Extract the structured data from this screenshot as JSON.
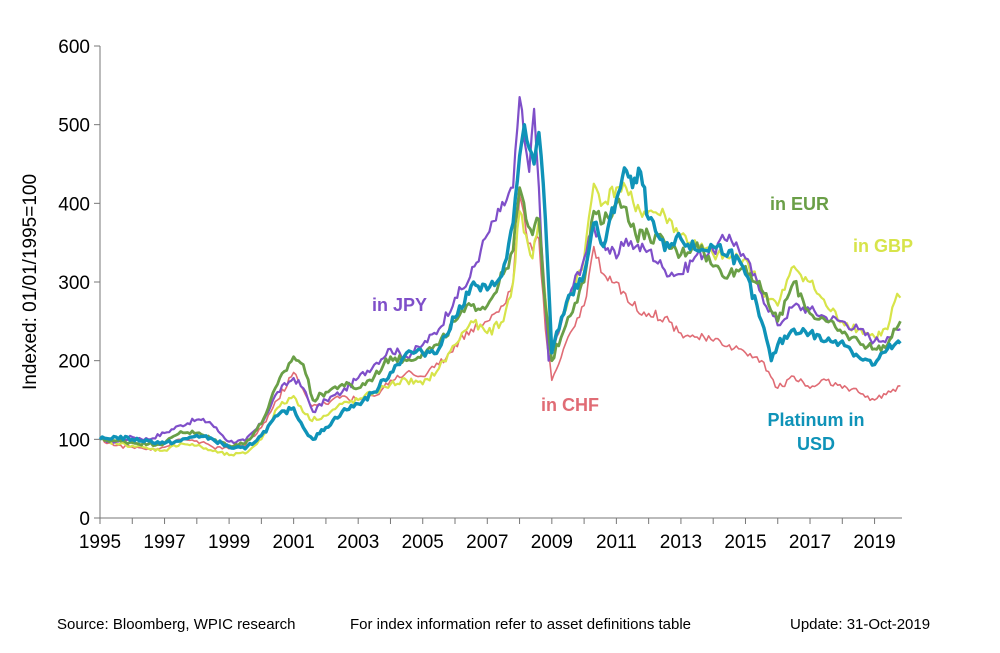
{
  "chart_data": {
    "type": "line",
    "ylabel": "Indexed: 01/01/1995=100",
    "xlim": [
      1995,
      2019.85
    ],
    "ylim": [
      0,
      600
    ],
    "x_ticks": [
      "1995",
      "1997",
      "1999",
      "2001",
      "2003",
      "2005",
      "2007",
      "2009",
      "2011",
      "2013",
      "2015",
      "2017",
      "2019"
    ],
    "y_ticks": [
      "0",
      "100",
      "200",
      "300",
      "400",
      "500",
      "600"
    ],
    "grid": false,
    "legend": "inline labels",
    "series": [
      {
        "name": "in JPY",
        "color": "#7f4fc9",
        "label_lines": [
          "in JPY"
        ],
        "x": [
          1995,
          1995.5,
          1996,
          1996.5,
          1997,
          1997.5,
          1998,
          1998.4,
          1998.8,
          1999,
          1999.5,
          2000,
          2000.5,
          2001,
          2001.3,
          2001.6,
          2002,
          2002.5,
          2003,
          2003.5,
          2004,
          2004.5,
          2005,
          2005.5,
          2006,
          2006.4,
          2006.8,
          2007,
          2007.4,
          2007.8,
          2008,
          2008.15,
          2008.3,
          2008.45,
          2008.6,
          2008.75,
          2008.9,
          2009,
          2009.3,
          2009.6,
          2010,
          2010.3,
          2010.6,
          2011,
          2011.3,
          2011.6,
          2012,
          2012.5,
          2013,
          2013.5,
          2014,
          2014.5,
          2015,
          2015.5,
          2016,
          2016.5,
          2017,
          2017.5,
          2018,
          2018.5,
          2019,
          2019.4,
          2019.8
        ],
        "values": [
          100,
          97,
          103,
          100,
          108,
          118,
          125,
          122,
          105,
          97,
          98,
          120,
          160,
          178,
          165,
          135,
          150,
          160,
          178,
          195,
          215,
          205,
          220,
          240,
          280,
          300,
          340,
          360,
          390,
          420,
          535,
          480,
          440,
          520,
          420,
          300,
          200,
          210,
          250,
          290,
          330,
          370,
          350,
          330,
          355,
          345,
          340,
          315,
          310,
          335,
          340,
          360,
          330,
          285,
          245,
          270,
          265,
          255,
          250,
          240,
          225,
          230,
          240
        ]
      },
      {
        "name": "in EUR",
        "color": "#6a9f47",
        "label_lines": [
          "in EUR"
        ],
        "x": [
          1995,
          1995.5,
          1996,
          1996.5,
          1997,
          1997.5,
          1998,
          1998.5,
          1999,
          1999.5,
          2000,
          2000.5,
          2001,
          2001.3,
          2001.6,
          2002,
          2002.5,
          2003,
          2003.5,
          2004,
          2004.5,
          2005,
          2005.5,
          2006,
          2006.5,
          2007,
          2007.5,
          2007.8,
          2008,
          2008.2,
          2008.4,
          2008.6,
          2008.8,
          2009,
          2009.5,
          2010,
          2010.3,
          2010.6,
          2011,
          2011.3,
          2011.6,
          2012,
          2012.5,
          2013,
          2013.5,
          2014,
          2014.5,
          2015,
          2015.5,
          2016,
          2016.5,
          2017,
          2017.5,
          2018,
          2018.5,
          2019,
          2019.4,
          2019.8
        ],
        "values": [
          100,
          98,
          96,
          94,
          95,
          110,
          108,
          100,
          92,
          95,
          120,
          170,
          205,
          195,
          150,
          160,
          170,
          165,
          180,
          205,
          200,
          210,
          220,
          250,
          270,
          270,
          310,
          340,
          420,
          380,
          360,
          380,
          270,
          200,
          255,
          300,
          390,
          375,
          400,
          395,
          360,
          360,
          350,
          335,
          350,
          320,
          310,
          320,
          290,
          250,
          300,
          260,
          250,
          235,
          225,
          215,
          220,
          250
        ]
      },
      {
        "name": "in GBP",
        "color": "#d7e44a",
        "label_lines": [
          "in GBP"
        ],
        "x": [
          1995,
          1995.5,
          1996,
          1996.5,
          1997,
          1997.5,
          1998,
          1998.5,
          1999,
          1999.5,
          2000,
          2000.5,
          2001,
          2001.5,
          2002,
          2002.5,
          2003,
          2003.5,
          2004,
          2004.5,
          2005,
          2005.5,
          2006,
          2006.5,
          2007,
          2007.5,
          2007.8,
          2008,
          2008.2,
          2008.4,
          2008.6,
          2008.8,
          2009,
          2009.5,
          2010,
          2010.3,
          2010.6,
          2011,
          2011.3,
          2011.6,
          2012,
          2012.5,
          2013,
          2013.5,
          2014,
          2014.5,
          2015,
          2015.5,
          2016,
          2016.5,
          2017,
          2017.5,
          2018,
          2018.5,
          2019,
          2019.4,
          2019.7,
          2019.8
        ],
        "values": [
          100,
          95,
          92,
          88,
          86,
          95,
          92,
          85,
          80,
          82,
          100,
          140,
          155,
          125,
          130,
          145,
          150,
          160,
          170,
          175,
          170,
          190,
          220,
          250,
          235,
          250,
          300,
          390,
          360,
          330,
          380,
          280,
          210,
          275,
          330,
          425,
          400,
          420,
          420,
          390,
          390,
          385,
          360,
          345,
          335,
          330,
          330,
          290,
          270,
          320,
          300,
          270,
          250,
          240,
          230,
          240,
          285,
          280
        ]
      },
      {
        "name": "in CHF",
        "color": "#e06c75",
        "label_lines": [
          "in CHF"
        ],
        "x": [
          1995,
          1995.5,
          1996,
          1996.5,
          1997,
          1997.5,
          1998,
          1998.5,
          1999,
          1999.5,
          2000,
          2000.5,
          2001,
          2001.5,
          2002,
          2002.5,
          2003,
          2003.5,
          2004,
          2004.5,
          2005,
          2005.5,
          2006,
          2006.5,
          2007,
          2007.5,
          2007.8,
          2008,
          2008.2,
          2008.4,
          2008.6,
          2008.8,
          2009,
          2009.5,
          2010,
          2010.3,
          2010.6,
          2011,
          2011.5,
          2012,
          2012.5,
          2013,
          2013.5,
          2014,
          2014.5,
          2015,
          2015.5,
          2016,
          2016.5,
          2017,
          2017.5,
          2018,
          2018.5,
          2019,
          2019.5,
          2019.8
        ],
        "values": [
          100,
          92,
          90,
          88,
          90,
          100,
          98,
          90,
          88,
          92,
          115,
          150,
          185,
          145,
          145,
          155,
          150,
          155,
          175,
          185,
          180,
          195,
          220,
          240,
          250,
          270,
          300,
          410,
          365,
          340,
          355,
          240,
          175,
          230,
          270,
          345,
          310,
          300,
          270,
          260,
          255,
          235,
          230,
          225,
          220,
          210,
          200,
          165,
          180,
          165,
          175,
          165,
          160,
          150,
          160,
          168
        ]
      },
      {
        "name": "Platinum in USD",
        "color": "#0f93b8",
        "label_lines": [
          "Platinum  in",
          "USD"
        ],
        "x": [
          1995,
          1995.5,
          1996,
          1996.5,
          1997,
          1997.5,
          1998,
          1998.5,
          1999,
          1999.5,
          2000,
          2000.5,
          2001,
          2001.3,
          2001.6,
          2002,
          2002.5,
          2003,
          2003.5,
          2004,
          2004.5,
          2005,
          2005.5,
          2006,
          2006.5,
          2007,
          2007.3,
          2007.6,
          2007.8,
          2008,
          2008.15,
          2008.3,
          2008.45,
          2008.6,
          2008.8,
          2009,
          2009.3,
          2009.6,
          2010,
          2010.3,
          2010.6,
          2011,
          2011.25,
          2011.5,
          2011.75,
          2012,
          2012.5,
          2013,
          2013.5,
          2014,
          2014.5,
          2015,
          2015.5,
          2015.8,
          2016,
          2016.5,
          2017,
          2017.5,
          2018,
          2018.5,
          2019,
          2019.4,
          2019.8
        ],
        "values": [
          100,
          103,
          100,
          98,
          95,
          98,
          105,
          100,
          90,
          88,
          105,
          130,
          140,
          115,
          100,
          115,
          135,
          145,
          160,
          185,
          210,
          210,
          215,
          255,
          295,
          290,
          300,
          330,
          375,
          460,
          500,
          470,
          450,
          490,
          380,
          210,
          255,
          285,
          310,
          375,
          345,
          405,
          445,
          420,
          440,
          380,
          340,
          355,
          340,
          345,
          340,
          310,
          250,
          200,
          220,
          240,
          235,
          225,
          225,
          205,
          195,
          215,
          222
        ]
      }
    ]
  },
  "footer": {
    "source": "Source: Bloomberg, WPIC research",
    "note": "For index information refer to asset definitions table",
    "update": "Update: 31-Oct-2019"
  }
}
